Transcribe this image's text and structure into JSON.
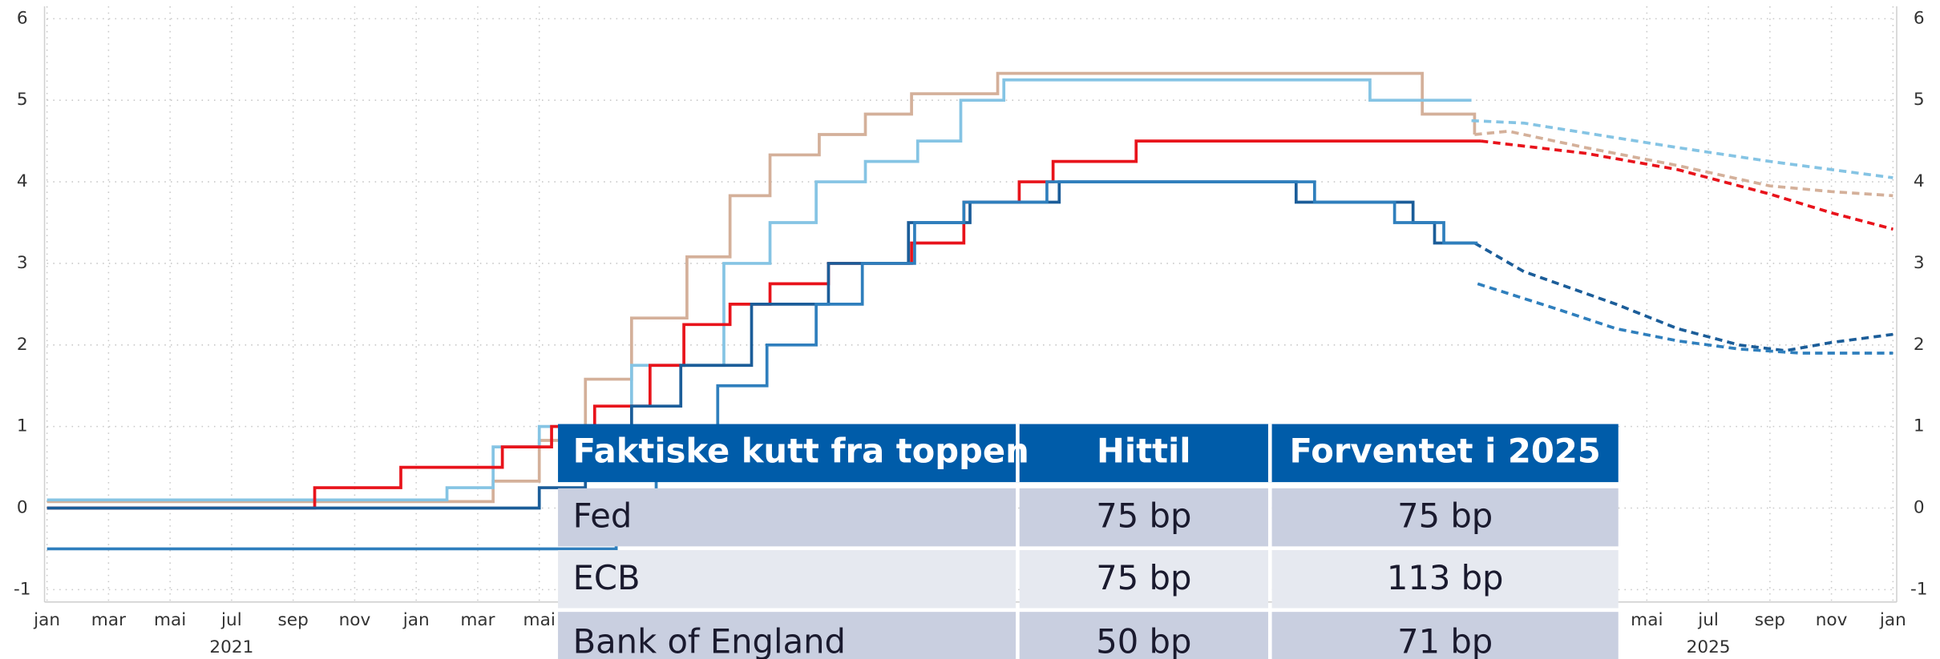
{
  "chart_data": {
    "type": "line",
    "xlim": [
      0,
      60
    ],
    "xticks": [
      {
        "value": 0,
        "label": "jan"
      },
      {
        "value": 2,
        "label": "mar"
      },
      {
        "value": 4,
        "label": "mai"
      },
      {
        "value": 6,
        "label": "jul"
      },
      {
        "value": 8,
        "label": "sep"
      },
      {
        "value": 10,
        "label": "nov"
      },
      {
        "value": 12,
        "label": "jan"
      },
      {
        "value": 14,
        "label": "mar"
      },
      {
        "value": 16,
        "label": "mai"
      },
      {
        "value": 52,
        "label": "mai"
      },
      {
        "value": 54,
        "label": "jul"
      },
      {
        "value": 56,
        "label": "sep"
      },
      {
        "value": 58,
        "label": "nov"
      },
      {
        "value": 60,
        "label": "jan"
      }
    ],
    "year_labels": [
      {
        "value": 6,
        "label": "2021"
      },
      {
        "value": 54,
        "label": "2025"
      }
    ],
    "ylim": [
      -1,
      6
    ],
    "yticks": [
      -1,
      0,
      1,
      2,
      3,
      4,
      5,
      6
    ],
    "grid": true,
    "series": [
      {
        "color": "#d4b09a",
        "line_style": "step",
        "x": [
          0,
          14.5,
          16,
          17.5,
          19,
          20.8,
          22.2,
          23.5,
          25.1,
          26.6,
          28.1,
          30.9,
          44.7,
          46.4
        ],
        "values": [
          0.08,
          0.33,
          0.83,
          1.58,
          2.33,
          3.08,
          3.83,
          4.33,
          4.58,
          4.83,
          5.08,
          5.33,
          4.83,
          4.58
        ]
      },
      {
        "color": "#d4b09a",
        "line_style": "dashed",
        "x": [
          46.4,
          47.5,
          50,
          53,
          56,
          58,
          60
        ],
        "values": [
          4.58,
          4.62,
          4.42,
          4.2,
          3.95,
          3.88,
          3.83
        ]
      },
      {
        "color": "#85c4e4",
        "line_style": "step",
        "x": [
          0,
          13,
          14.5,
          16,
          19,
          22,
          23.5,
          25,
          26.6,
          28.3,
          29.7,
          31.1,
          43,
          46.3
        ],
        "values": [
          0.1,
          0.25,
          0.75,
          1.0,
          1.75,
          3.0,
          3.5,
          4.0,
          4.25,
          4.5,
          5.0,
          5.25,
          5.0,
          5.0
        ]
      },
      {
        "color": "#85c4e4",
        "line_style": "dashed",
        "x": [
          46.3,
          48,
          50,
          53,
          56,
          58,
          60
        ],
        "values": [
          4.75,
          4.72,
          4.6,
          4.42,
          4.25,
          4.15,
          4.05
        ]
      },
      {
        "color": "#e8131b",
        "line_style": "step",
        "x": [
          0,
          8.7,
          11.5,
          14.8,
          16.4,
          17.8,
          19.6,
          20.7,
          22.2,
          23.5,
          25.4,
          28.1,
          29.8,
          31.6,
          32.7,
          35.4,
          46.6
        ],
        "values": [
          0,
          0.25,
          0.5,
          0.75,
          1.0,
          1.25,
          1.75,
          2.25,
          2.5,
          2.75,
          3.0,
          3.25,
          3.75,
          4.0,
          4.25,
          4.5,
          4.5
        ]
      },
      {
        "color": "#e8131b",
        "line_style": "dashed",
        "x": [
          46.6,
          50,
          53,
          56,
          58,
          60
        ],
        "values": [
          4.5,
          4.35,
          4.15,
          3.85,
          3.62,
          3.42
        ]
      },
      {
        "color": "#1b5d99",
        "line_style": "step",
        "x": [
          0,
          16,
          17.5,
          19,
          20.6,
          22.9,
          25.4,
          28,
          30,
          32.9,
          40.6,
          44.4,
          45.1,
          46.4
        ],
        "values": [
          0,
          0.25,
          0.75,
          1.25,
          1.75,
          2.5,
          3.0,
          3.5,
          3.75,
          4.0,
          3.75,
          3.5,
          3.25,
          3.25
        ]
      },
      {
        "color": "#1b5d99",
        "line_style": "dashed",
        "x": [
          46.4,
          48,
          51,
          53,
          55,
          56.5,
          58,
          60
        ],
        "values": [
          3.25,
          2.9,
          2.5,
          2.2,
          2.0,
          1.93,
          2.03,
          2.13
        ]
      },
      {
        "color": "#2f7fbd",
        "line_style": "step",
        "x": [
          0,
          18.5,
          19.8,
          21.8,
          23.4,
          25,
          26.5,
          28.2,
          29.8,
          32.5,
          41.2,
          43.8,
          45.4,
          46.5
        ],
        "values": [
          -0.5,
          0,
          0.5,
          1.5,
          2.0,
          2.5,
          3.0,
          3.5,
          3.75,
          4.0,
          3.75,
          3.5,
          3.25,
          3.25
        ]
      },
      {
        "color": "#2f7fbd",
        "line_style": "dashed",
        "x": [
          46.5,
          49,
          51,
          53,
          55,
          57,
          60
        ],
        "values": [
          2.75,
          2.45,
          2.2,
          2.05,
          1.95,
          1.9,
          1.9
        ]
      }
    ]
  },
  "table": {
    "columns": [
      "Faktiske kutt fra toppen",
      "Hittil",
      "Forventet i 2025"
    ],
    "rows": [
      [
        "Fed",
        "75 bp",
        "75 bp"
      ],
      [
        "ECB",
        "75 bp",
        "113 bp"
      ],
      [
        "Bank of England",
        "50 bp",
        "71 bp"
      ]
    ]
  }
}
